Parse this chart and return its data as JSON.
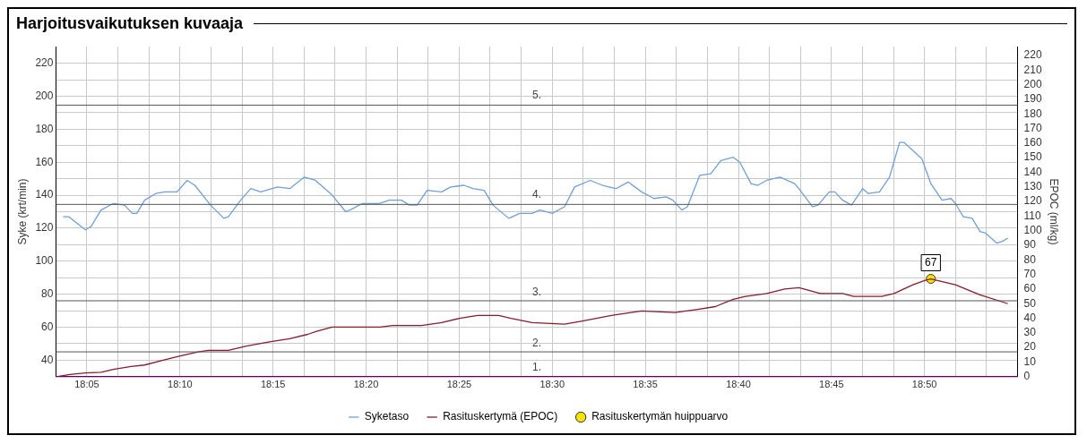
{
  "chart_data": {
    "type": "line",
    "title": "Harjoitusvaikutuksen kuvaaja",
    "ylabel": "Syke (krt/min)",
    "y2label": "EPOC (ml/kg)",
    "xlim": [
      18.0556,
      18.9167
    ],
    "xticks": [
      {
        "value": 18.0833,
        "label": "18:05"
      },
      {
        "value": 18.1111,
        "label": null
      },
      {
        "value": 18.1389,
        "label": null
      },
      {
        "value": 18.1667,
        "label": "18:10"
      },
      {
        "value": 18.1944,
        "label": null
      },
      {
        "value": 18.2222,
        "label": null
      },
      {
        "value": 18.25,
        "label": "18:15"
      },
      {
        "value": 18.2778,
        "label": null
      },
      {
        "value": 18.3056,
        "label": null
      },
      {
        "value": 18.3333,
        "label": "18:20"
      },
      {
        "value": 18.3611,
        "label": null
      },
      {
        "value": 18.3889,
        "label": null
      },
      {
        "value": 18.4167,
        "label": "18:25"
      },
      {
        "value": 18.4444,
        "label": null
      },
      {
        "value": 18.4722,
        "label": null
      },
      {
        "value": 18.5,
        "label": "18:30"
      },
      {
        "value": 18.5278,
        "label": null
      },
      {
        "value": 18.5556,
        "label": null
      },
      {
        "value": 18.5833,
        "label": "18:35"
      },
      {
        "value": 18.6111,
        "label": null
      },
      {
        "value": 18.6389,
        "label": null
      },
      {
        "value": 18.6667,
        "label": "18:40"
      },
      {
        "value": 18.6944,
        "label": null
      },
      {
        "value": 18.7222,
        "label": null
      },
      {
        "value": 18.75,
        "label": "18:45"
      },
      {
        "value": 18.7778,
        "label": null
      },
      {
        "value": 18.8056,
        "label": null
      },
      {
        "value": 18.8333,
        "label": "18:50"
      },
      {
        "value": 18.8611,
        "label": null
      },
      {
        "value": 18.8889,
        "label": null
      }
    ],
    "ylim": [
      30,
      230
    ],
    "yticks": [
      40,
      {
        "value": 50,
        "label": null
      },
      60,
      {
        "value": 70,
        "label": null
      },
      80,
      {
        "value": 90,
        "label": null
      },
      100,
      {
        "value": 110,
        "label": null
      },
      120,
      {
        "value": 130,
        "label": null
      },
      140,
      {
        "value": 150,
        "label": null
      },
      160,
      {
        "value": 170,
        "label": null
      },
      180,
      {
        "value": 190,
        "label": null
      },
      200,
      {
        "value": 210,
        "label": null
      },
      220
    ],
    "y2lim": [
      0,
      226
    ],
    "y2ticks": [
      0,
      10,
      20,
      30,
      40,
      50,
      60,
      70,
      80,
      90,
      100,
      110,
      120,
      130,
      140,
      150,
      160,
      170,
      180,
      190,
      200,
      210,
      220
    ],
    "grid": true,
    "legend": "bottom",
    "ref_lines": [
      {
        "axis": "y2",
        "value": 186,
        "color": "#555555"
      },
      {
        "axis": "y2",
        "value": 118,
        "color": "#555555"
      },
      {
        "axis": "y2",
        "value": 52,
        "color": "#555555"
      },
      {
        "axis": "y2",
        "value": 17,
        "color": "#555555"
      },
      {
        "axis": "y2",
        "value": 0,
        "color": "#800080"
      }
    ],
    "annotations": [
      {
        "text": "5.",
        "y": 197
      },
      {
        "text": "4.",
        "y": 137
      },
      {
        "text": "3.",
        "y": 78
      },
      {
        "text": "2.",
        "y": 47
      },
      {
        "text": "1.",
        "y": 32
      }
    ],
    "series": [
      {
        "name": "Syketaso",
        "type": "line",
        "color": "#6fa0d8",
        "x": [
          18.062,
          18.067,
          18.082,
          18.087,
          18.096,
          18.107,
          18.117,
          18.124,
          18.128,
          18.135,
          18.145,
          18.153,
          18.164,
          18.173,
          18.18,
          18.194,
          18.206,
          18.21,
          18.221,
          18.23,
          18.239,
          18.254,
          18.265,
          18.278,
          18.288,
          18.303,
          18.315,
          18.319,
          18.33,
          18.345,
          18.354,
          18.365,
          18.372,
          18.379,
          18.388,
          18.401,
          18.409,
          18.421,
          18.429,
          18.439,
          18.447,
          18.461,
          18.471,
          18.482,
          18.489,
          18.5,
          18.511,
          18.52,
          18.534,
          18.545,
          18.557,
          18.568,
          18.58,
          18.591,
          18.602,
          18.608,
          18.616,
          18.621,
          18.632,
          18.642,
          18.651,
          18.662,
          18.668,
          18.678,
          18.684,
          18.692,
          18.704,
          18.717,
          18.722,
          18.733,
          18.738,
          18.748,
          18.753,
          18.76,
          18.768,
          18.778,
          18.783,
          18.793,
          18.802,
          18.811,
          18.815,
          18.831,
          18.839,
          18.849,
          18.857,
          18.861,
          18.868,
          18.876,
          18.883,
          18.888,
          18.898,
          18.903,
          18.908
        ],
        "values": [
          127,
          127,
          119,
          121,
          131,
          135,
          134,
          129,
          129,
          137,
          141,
          142,
          142,
          149,
          146,
          134,
          126,
          127,
          137,
          144,
          142,
          145,
          144,
          151,
          149,
          140,
          130,
          131,
          135,
          135,
          137,
          137,
          134,
          134,
          143,
          142,
          145,
          146,
          144,
          143,
          134,
          126,
          129,
          129,
          131,
          129,
          133,
          145,
          149,
          146,
          144,
          148,
          142,
          138,
          139,
          137,
          131,
          133,
          152,
          153,
          161,
          163,
          160,
          147,
          146,
          149,
          151,
          147,
          143,
          133,
          134,
          142,
          142,
          137,
          134,
          144,
          141,
          142,
          151,
          172,
          172,
          162,
          147,
          137,
          138,
          135,
          127,
          126,
          118,
          117,
          111,
          112,
          114
        ]
      },
      {
        "name": "Rasituskertymä (EPOC)",
        "type": "line",
        "axis": "y2",
        "color": "#8b1a2b",
        "x": [
          18.056,
          18.068,
          18.082,
          18.096,
          18.107,
          18.123,
          18.135,
          18.15,
          18.166,
          18.183,
          18.192,
          18.21,
          18.226,
          18.248,
          18.265,
          18.281,
          18.289,
          18.303,
          18.331,
          18.346,
          18.357,
          18.383,
          18.401,
          18.417,
          18.433,
          18.452,
          18.463,
          18.482,
          18.511,
          18.526,
          18.553,
          18.58,
          18.61,
          18.629,
          18.646,
          18.662,
          18.673,
          18.692,
          18.708,
          18.721,
          18.74,
          18.76,
          18.77,
          18.795,
          18.806,
          18.823,
          18.834,
          18.839,
          18.861,
          18.883,
          18.908
        ],
        "values": [
          0,
          1.5,
          2.5,
          3,
          5,
          7,
          8,
          11,
          14,
          17,
          18,
          18,
          21,
          24,
          26,
          29,
          31,
          34,
          34,
          34,
          35,
          35,
          37,
          40,
          42,
          42,
          40,
          37,
          36,
          38,
          42,
          45,
          44,
          46,
          48,
          53,
          55,
          57,
          60,
          61,
          57,
          57,
          55,
          55,
          57,
          63,
          66,
          67,
          63,
          56,
          50
        ]
      },
      {
        "name": "Rasituskertymän huippuarvo",
        "type": "scatter",
        "axis": "y2",
        "color": "#f5e400",
        "x": [
          18.839
        ],
        "values": [
          67
        ],
        "value_labels": [
          "67"
        ]
      }
    ]
  }
}
